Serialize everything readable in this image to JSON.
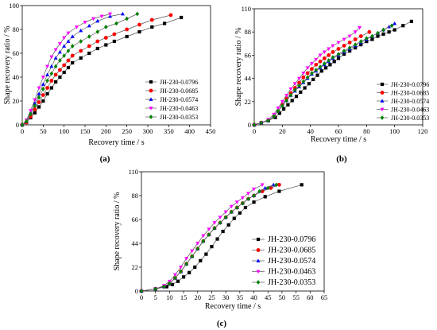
{
  "series_styles": [
    {
      "name": "JH-230-0.0796",
      "color": "#000000",
      "marker": "square"
    },
    {
      "name": "JH-230-0.0685",
      "color": "#ff0000",
      "marker": "circle"
    },
    {
      "name": "JH-230-0.0574",
      "color": "#0000ff",
      "marker": "triangle-up"
    },
    {
      "name": "JH-230-0.0463",
      "color": "#ff00ff",
      "marker": "triangle-down"
    },
    {
      "name": "JH-230-0.0353",
      "color": "#008000",
      "marker": "diamond"
    }
  ],
  "chart_data": [
    {
      "type": "line",
      "panel": "(a)",
      "xlabel": "Recovery time / s",
      "ylabel": "Shape recovery ratio / %",
      "xlim": [
        0,
        450
      ],
      "ylim": [
        0,
        100
      ],
      "xticks": [
        0,
        50,
        100,
        150,
        200,
        250,
        300,
        350,
        400,
        450
      ],
      "yticks": [
        0,
        20,
        40,
        60,
        80,
        100
      ],
      "legend_position": "right",
      "series": [
        {
          "name": "JH-230-0.0796",
          "x": [
            0,
            10,
            20,
            30,
            40,
            50,
            60,
            70,
            80,
            90,
            100,
            110,
            120,
            140,
            160,
            180,
            200,
            220,
            250,
            280,
            310,
            340,
            380
          ],
          "y": [
            0,
            2,
            6,
            10,
            15,
            20,
            26,
            31,
            36,
            40,
            44,
            48,
            52,
            56,
            60,
            64,
            67,
            70,
            74,
            78,
            82,
            85,
            90
          ]
        },
        {
          "name": "JH-230-0.0685",
          "x": [
            0,
            10,
            20,
            30,
            40,
            50,
            60,
            70,
            80,
            90,
            100,
            110,
            120,
            140,
            160,
            180,
            200,
            220,
            250,
            280,
            310,
            355
          ],
          "y": [
            0,
            2,
            7,
            13,
            19,
            25,
            31,
            37,
            42,
            46,
            50,
            54,
            58,
            62,
            66,
            70,
            73,
            76,
            80,
            84,
            88,
            92
          ]
        },
        {
          "name": "JH-230-0.0574",
          "x": [
            0,
            10,
            20,
            30,
            40,
            50,
            60,
            70,
            80,
            90,
            100,
            110,
            120,
            140,
            160,
            180,
            210,
            240
          ],
          "y": [
            0,
            3,
            10,
            18,
            26,
            34,
            42,
            49,
            56,
            61,
            66,
            70,
            74,
            79,
            83,
            87,
            91,
            93
          ]
        },
        {
          "name": "JH-230-0.0463",
          "x": [
            0,
            10,
            20,
            30,
            40,
            50,
            60,
            70,
            80,
            90,
            100,
            110,
            130,
            150,
            170,
            190,
            210
          ],
          "y": [
            0,
            4,
            12,
            21,
            31,
            40,
            49,
            57,
            63,
            68,
            73,
            77,
            82,
            86,
            89,
            91,
            93
          ]
        },
        {
          "name": "JH-230-0.0353",
          "x": [
            0,
            10,
            20,
            30,
            40,
            50,
            60,
            70,
            80,
            90,
            100,
            110,
            120,
            140,
            160,
            180,
            200,
            225,
            250,
            275
          ],
          "y": [
            0,
            3,
            9,
            16,
            23,
            30,
            37,
            43,
            49,
            54,
            58,
            62,
            66,
            70,
            74,
            78,
            82,
            85,
            89,
            93
          ]
        }
      ]
    },
    {
      "type": "line",
      "panel": "(b)",
      "xlabel": "Recovery time / s",
      "ylabel": "Shape recovery ratio / %",
      "xlim": [
        0,
        120
      ],
      "ylim": [
        0,
        110
      ],
      "xticks": [
        0,
        20,
        40,
        60,
        80,
        100,
        120
      ],
      "yticks": [
        0,
        22,
        44,
        66,
        88,
        110
      ],
      "legend_position": "right",
      "series": [
        {
          "name": "JH-230-0.0796",
          "x": [
            0,
            5,
            10,
            15,
            18,
            21,
            24,
            27,
            30,
            33,
            36,
            39,
            42,
            45,
            48,
            51,
            54,
            57,
            60,
            64,
            68,
            72,
            76,
            80,
            84,
            88,
            92,
            96,
            100,
            106,
            112
          ],
          "y": [
            0,
            2,
            4,
            7,
            11,
            15,
            19,
            23,
            27,
            31,
            35,
            39,
            43,
            47,
            51,
            54,
            57,
            60,
            63,
            67,
            70,
            73,
            76,
            79,
            81,
            84,
            86,
            88,
            90,
            94,
            98
          ]
        },
        {
          "name": "JH-230-0.0685",
          "x": [
            0,
            5,
            10,
            14,
            17,
            20,
            23,
            26,
            29,
            32,
            35,
            38,
            41,
            44,
            47,
            50,
            53,
            56,
            60,
            64,
            68,
            72,
            76,
            82
          ],
          "y": [
            0,
            2,
            4,
            8,
            13,
            19,
            25,
            30,
            35,
            40,
            45,
            49,
            53,
            57,
            60,
            63,
            66,
            69,
            72,
            75,
            78,
            81,
            84,
            88
          ]
        },
        {
          "name": "JH-230-0.0574",
          "x": [
            0,
            5,
            10,
            14,
            17,
            20,
            23,
            26,
            29,
            32,
            35,
            38,
            41,
            44,
            47,
            50,
            53,
            56,
            60,
            64,
            68,
            72,
            76,
            80,
            84,
            88,
            92,
            96,
            100
          ],
          "y": [
            0,
            2,
            4,
            8,
            13,
            18,
            23,
            28,
            32,
            36,
            40,
            44,
            48,
            51,
            54,
            57,
            60,
            63,
            66,
            69,
            72,
            75,
            78,
            81,
            84,
            87,
            90,
            93,
            96
          ]
        },
        {
          "name": "JH-230-0.0463",
          "x": [
            0,
            5,
            10,
            14,
            17,
            20,
            23,
            26,
            29,
            32,
            35,
            38,
            41,
            44,
            47,
            50,
            53,
            56,
            60,
            64,
            68,
            72,
            75
          ],
          "y": [
            0,
            2,
            5,
            10,
            16,
            22,
            28,
            34,
            39,
            44,
            49,
            54,
            58,
            62,
            66,
            69,
            72,
            75,
            78,
            81,
            84,
            88,
            92
          ]
        },
        {
          "name": "JH-230-0.0353",
          "x": [
            0,
            5,
            10,
            14,
            17,
            20,
            23,
            26,
            29,
            32,
            35,
            38,
            41,
            44,
            47,
            50,
            53,
            56,
            60,
            64,
            68,
            72,
            76,
            80,
            84,
            88,
            92,
            98
          ],
          "y": [
            0,
            2,
            4,
            8,
            13,
            18,
            23,
            28,
            33,
            37,
            41,
            45,
            49,
            52,
            55,
            58,
            61,
            64,
            67,
            70,
            73,
            76,
            79,
            82,
            84,
            87,
            90,
            94
          ]
        }
      ]
    },
    {
      "type": "line",
      "panel": "(c)",
      "xlabel": "Recovery time / s",
      "ylabel": "Shape recovery ratio / %",
      "xlim": [
        0,
        65
      ],
      "ylim": [
        0,
        110
      ],
      "xticks": [
        0,
        5,
        10,
        15,
        20,
        25,
        30,
        35,
        40,
        45,
        50,
        55,
        60,
        65
      ],
      "yticks": [
        0,
        22,
        44,
        66,
        88,
        110
      ],
      "legend_position": "right",
      "series": [
        {
          "name": "JH-230-0.0796",
          "x": [
            0,
            5,
            9,
            11,
            13,
            15,
            17,
            19,
            21,
            23,
            25,
            27,
            29,
            31,
            33,
            35,
            37,
            40,
            44,
            49,
            57
          ],
          "y": [
            0,
            2,
            4,
            6,
            9,
            13,
            17,
            22,
            28,
            34,
            41,
            48,
            55,
            61,
            67,
            72,
            77,
            82,
            87,
            92,
            98
          ]
        },
        {
          "name": "JH-230-0.0685",
          "x": [
            0,
            5,
            8,
            10,
            12,
            14,
            16,
            18,
            20,
            22,
            24,
            26,
            28,
            30,
            32,
            34,
            36,
            38,
            40,
            43,
            46,
            49
          ],
          "y": [
            0,
            2,
            4,
            7,
            12,
            18,
            25,
            32,
            39,
            46,
            52,
            58,
            63,
            68,
            73,
            77,
            81,
            85,
            88,
            92,
            95,
            98
          ]
        },
        {
          "name": "JH-230-0.0574",
          "x": [
            0,
            5,
            8,
            10,
            12,
            14,
            16,
            18,
            20,
            22,
            24,
            26,
            28,
            30,
            32,
            34,
            36,
            38,
            40,
            42,
            44,
            47
          ],
          "y": [
            0,
            2,
            4,
            7,
            12,
            18,
            25,
            32,
            39,
            46,
            52,
            58,
            63,
            68,
            73,
            77,
            81,
            85,
            88,
            92,
            95,
            98
          ]
        },
        {
          "name": "JH-230-0.0463",
          "x": [
            0,
            5,
            8,
            10,
            12,
            14,
            16,
            18,
            20,
            22,
            24,
            26,
            28,
            30,
            32,
            34,
            36,
            38,
            40,
            43
          ],
          "y": [
            0,
            2,
            5,
            9,
            15,
            22,
            30,
            37,
            44,
            51,
            57,
            63,
            68,
            73,
            78,
            82,
            86,
            90,
            94,
            98
          ]
        },
        {
          "name": "JH-230-0.0353",
          "x": [
            0,
            5,
            8,
            10,
            12,
            14,
            16,
            18,
            20,
            22,
            24,
            26,
            28,
            30,
            32,
            34,
            36,
            38,
            40,
            42,
            45,
            48
          ],
          "y": [
            0,
            2,
            4,
            7,
            12,
            18,
            25,
            32,
            39,
            46,
            52,
            58,
            63,
            68,
            73,
            77,
            81,
            85,
            88,
            92,
            95,
            98
          ]
        }
      ]
    }
  ]
}
